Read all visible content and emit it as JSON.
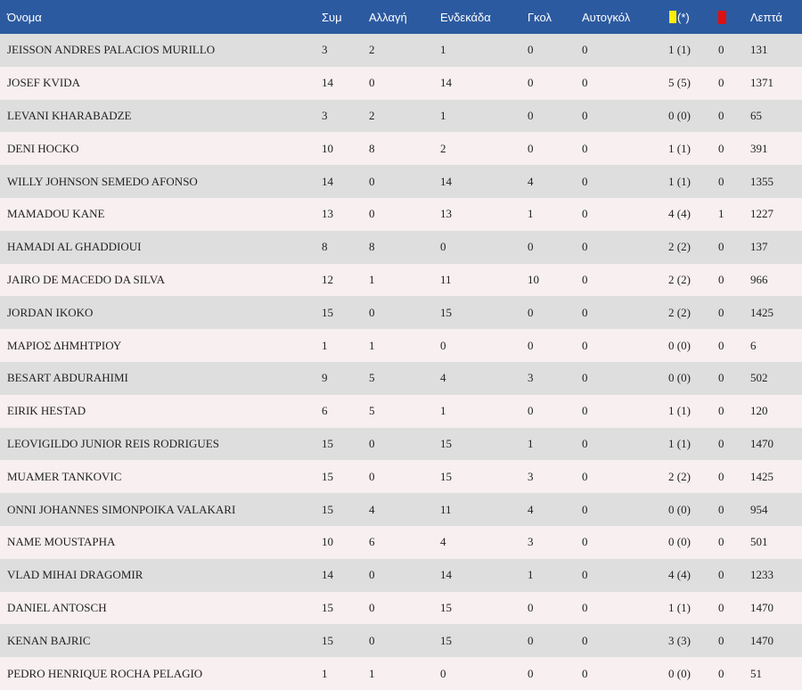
{
  "headers": {
    "name": "Όνομα",
    "apps": "Συμ",
    "subs": "Αλλαγή",
    "starts": "Ενδεκάδα",
    "goals": "Γκολ",
    "own_goals": "Αυτογκόλ",
    "yellow_suffix": "(*)",
    "yellow_icon": "yellow-card-icon",
    "red_icon": "red-card-icon",
    "minutes": "Λεπτά"
  },
  "colors": {
    "header_bg": "#2c5aa0",
    "row_alt": "#dedede",
    "row_base": "#f7eff0",
    "yellow": "#ffee00",
    "red": "#e01010"
  },
  "players": [
    {
      "name": "JEISSON ANDRES PALACIOS MURILLO",
      "apps": "3",
      "subs": "2",
      "starts": "1",
      "goals": "0",
      "own_goals": "0",
      "yellow": "1 (1)",
      "red": "0",
      "minutes": "131"
    },
    {
      "name": "JOSEF KVIDA",
      "apps": "14",
      "subs": "0",
      "starts": "14",
      "goals": "0",
      "own_goals": "0",
      "yellow": "5 (5)",
      "red": "0",
      "minutes": "1371"
    },
    {
      "name": "LEVANI KHARABADZE",
      "apps": "3",
      "subs": "2",
      "starts": "1",
      "goals": "0",
      "own_goals": "0",
      "yellow": "0 (0)",
      "red": "0",
      "minutes": "65"
    },
    {
      "name": "DENI HOCKO",
      "apps": "10",
      "subs": "8",
      "starts": "2",
      "goals": "0",
      "own_goals": "0",
      "yellow": "1 (1)",
      "red": "0",
      "minutes": "391"
    },
    {
      "name": "WILLY JOHNSON SEMEDO AFONSO",
      "apps": "14",
      "subs": "0",
      "starts": "14",
      "goals": "4",
      "own_goals": "0",
      "yellow": "1 (1)",
      "red": "0",
      "minutes": "1355"
    },
    {
      "name": "MAMADOU KANE",
      "apps": "13",
      "subs": "0",
      "starts": "13",
      "goals": "1",
      "own_goals": "0",
      "yellow": "4 (4)",
      "red": "1",
      "minutes": "1227"
    },
    {
      "name": "HAMADI AL GHADDIOUI",
      "apps": "8",
      "subs": "8",
      "starts": "0",
      "goals": "0",
      "own_goals": "0",
      "yellow": "2 (2)",
      "red": "0",
      "minutes": "137"
    },
    {
      "name": "JAIRO DE MACEDO DA SILVA",
      "apps": "12",
      "subs": "1",
      "starts": "11",
      "goals": "10",
      "own_goals": "0",
      "yellow": "2 (2)",
      "red": "0",
      "minutes": "966"
    },
    {
      "name": "JORDAN IKOKO",
      "apps": "15",
      "subs": "0",
      "starts": "15",
      "goals": "0",
      "own_goals": "0",
      "yellow": "2 (2)",
      "red": "0",
      "minutes": "1425"
    },
    {
      "name": "ΜΑΡΙΟΣ ΔΗΜΗΤΡΙΟΥ",
      "apps": "1",
      "subs": "1",
      "starts": "0",
      "goals": "0",
      "own_goals": "0",
      "yellow": "0 (0)",
      "red": "0",
      "minutes": "6"
    },
    {
      "name": "BESART ABDURAHIMI",
      "apps": "9",
      "subs": "5",
      "starts": "4",
      "goals": "3",
      "own_goals": "0",
      "yellow": "0 (0)",
      "red": "0",
      "minutes": "502"
    },
    {
      "name": "EIRIK HESTAD",
      "apps": "6",
      "subs": "5",
      "starts": "1",
      "goals": "0",
      "own_goals": "0",
      "yellow": "1 (1)",
      "red": "0",
      "minutes": "120"
    },
    {
      "name": "LEOVIGILDO JUNIOR REIS RODRIGUES",
      "apps": "15",
      "subs": "0",
      "starts": "15",
      "goals": "1",
      "own_goals": "0",
      "yellow": "1 (1)",
      "red": "0",
      "minutes": "1470"
    },
    {
      "name": "MUAMER TANKOVIC",
      "apps": "15",
      "subs": "0",
      "starts": "15",
      "goals": "3",
      "own_goals": "0",
      "yellow": "2 (2)",
      "red": "0",
      "minutes": "1425"
    },
    {
      "name": "ONNI JOHANNES SIMONPOIKA VALAKARI",
      "apps": "15",
      "subs": "4",
      "starts": "11",
      "goals": "4",
      "own_goals": "0",
      "yellow": "0 (0)",
      "red": "0",
      "minutes": "954"
    },
    {
      "name": "NAME MOUSTAPHA",
      "apps": "10",
      "subs": "6",
      "starts": "4",
      "goals": "3",
      "own_goals": "0",
      "yellow": "0 (0)",
      "red": "0",
      "minutes": "501"
    },
    {
      "name": "VLAD MIHAI DRAGOMIR",
      "apps": "14",
      "subs": "0",
      "starts": "14",
      "goals": "1",
      "own_goals": "0",
      "yellow": "4 (4)",
      "red": "0",
      "minutes": "1233"
    },
    {
      "name": "DANIEL ANTOSCH",
      "apps": "15",
      "subs": "0",
      "starts": "15",
      "goals": "0",
      "own_goals": "0",
      "yellow": "1 (1)",
      "red": "0",
      "minutes": "1470"
    },
    {
      "name": "KENAN BAJRIC",
      "apps": "15",
      "subs": "0",
      "starts": "15",
      "goals": "0",
      "own_goals": "0",
      "yellow": "3 (3)",
      "red": "0",
      "minutes": "1470"
    },
    {
      "name": "PEDRO HENRIQUE ROCHA PELAGIO",
      "apps": "1",
      "subs": "1",
      "starts": "0",
      "goals": "0",
      "own_goals": "0",
      "yellow": "0 (0)",
      "red": "0",
      "minutes": "51"
    }
  ]
}
